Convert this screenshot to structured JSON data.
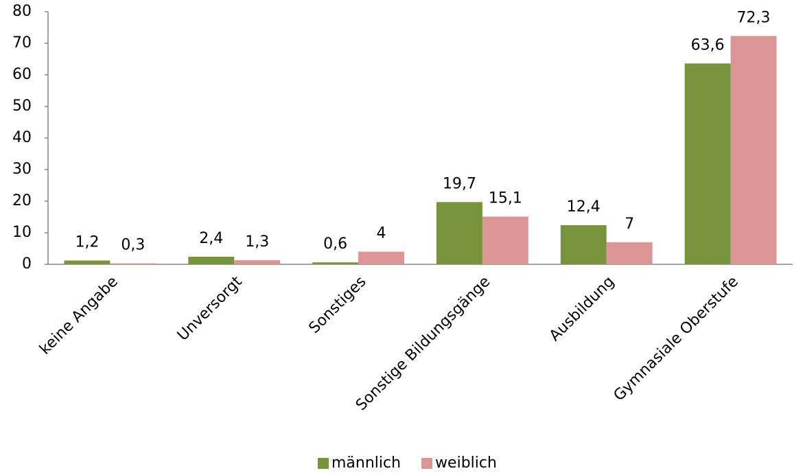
{
  "chart_data": {
    "type": "bar",
    "categories": [
      "keine Angabe",
      "Unversorgt",
      "Sonstiges",
      "Sonstige Bildungsgänge",
      "Ausbildung",
      "Gymnasiale Oberstufe"
    ],
    "series": [
      {
        "name": "männlich",
        "color": "#77933c",
        "values": [
          1.2,
          2.4,
          0.6,
          19.7,
          12.4,
          63.6
        ],
        "value_labels": [
          "1,2",
          "2,4",
          "0,6",
          "19,7",
          "12,4",
          "63,6"
        ]
      },
      {
        "name": "weiblich",
        "color": "#d99694",
        "values": [
          0.3,
          1.3,
          4,
          15.1,
          7,
          72.3
        ],
        "value_labels": [
          "0,3",
          "1,3",
          "4",
          "15,1",
          "7",
          "72,3"
        ]
      }
    ],
    "ylim": [
      0,
      80
    ],
    "yticks": [
      0,
      10,
      20,
      30,
      40,
      50,
      60,
      70,
      80
    ],
    "grid": false,
    "legend": "bottom"
  }
}
